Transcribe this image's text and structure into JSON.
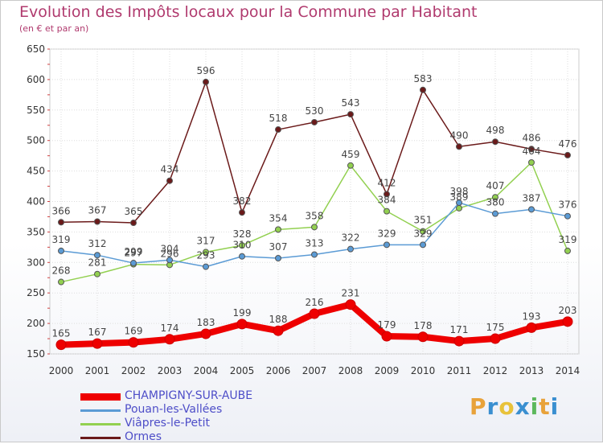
{
  "header": {
    "title": "Evolution des Impôts locaux pour la Commune par Habitant",
    "subtitle": "(en € et par an)"
  },
  "logo": {
    "text": "Proxiti",
    "colors": [
      "#e8a23a",
      "#3a8fd0",
      "#e8c23a",
      "#3a8fd0",
      "#5cb85c",
      "#e8a23a",
      "#3a8fd0"
    ]
  },
  "chart_data": {
    "type": "line",
    "x": [
      "2000",
      "2001",
      "2002",
      "2003",
      "2004",
      "2005",
      "2006",
      "2007",
      "2008",
      "2009",
      "2010",
      "2011",
      "2012",
      "2013",
      "2014"
    ],
    "ylim": [
      150,
      650
    ],
    "yticks": [
      150,
      200,
      250,
      300,
      350,
      400,
      450,
      500,
      550,
      600,
      650
    ],
    "grid": true,
    "legend_position": "bottom-left",
    "series": [
      {
        "name": "CHAMPIGNY-SUR-AUBE",
        "color": "#ee0000",
        "values": [
          165,
          167,
          169,
          174,
          183,
          199,
          188,
          216,
          231,
          179,
          178,
          171,
          175,
          193,
          203
        ]
      },
      {
        "name": "Pouan-les-Vallées",
        "color": "#5b9bd5",
        "values": [
          319,
          312,
          299,
          304,
          293,
          310,
          307,
          313,
          322,
          329,
          329,
          398,
          380,
          387,
          376
        ]
      },
      {
        "name": "Viâpres-le-Petit",
        "color": "#92d050",
        "values": [
          268,
          281,
          297,
          296,
          317,
          328,
          354,
          358,
          459,
          384,
          351,
          389,
          407,
          464,
          319
        ]
      },
      {
        "name": "Ormes",
        "color": "#6b1a1a",
        "values": [
          366,
          367,
          365,
          434,
          596,
          382,
          518,
          530,
          543,
          412,
          583,
          490,
          498,
          486,
          476
        ]
      }
    ],
    "point_labels": {
      "CHAMPIGNY-SUR-AUBE": [
        "165",
        "167",
        "169",
        "174",
        "183",
        "199",
        "188",
        "216",
        "231",
        "179",
        "178",
        "171",
        "175",
        "193",
        "203"
      ],
      "Pouan-les-Vallées": [
        "319",
        "312",
        "299",
        "304",
        "293",
        "310",
        "307",
        "313",
        "322",
        "329",
        "329",
        "398",
        "380",
        "387",
        "376"
      ],
      "Viâpres-le-Petit": [
        "268",
        "281",
        "297",
        "296",
        "317",
        "328",
        "354",
        "358",
        "459",
        "384",
        "351",
        "389",
        "407",
        "464",
        "319"
      ],
      "Ormes": [
        "366",
        "367",
        "365",
        "434",
        "596",
        "382",
        "518",
        "530",
        "543",
        "412",
        "583",
        "490",
        "498",
        "486",
        "476"
      ]
    }
  }
}
